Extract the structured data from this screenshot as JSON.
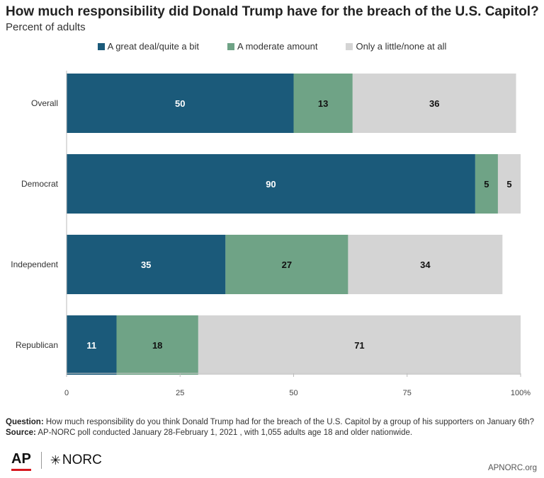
{
  "chart_data": {
    "type": "bar",
    "orientation": "horizontal",
    "stacked": true,
    "title": "How much responsibility did Donald Trump have for the breach of the U.S. Capitol?",
    "subtitle": "Percent of adults",
    "categories": [
      "Overall",
      "Democrat",
      "Independent",
      "Republican"
    ],
    "series": [
      {
        "name": "A great deal/quite a bit",
        "color": "#1b5a7a",
        "values": [
          50,
          90,
          35,
          11
        ]
      },
      {
        "name": "A moderate amount",
        "color": "#6fa386",
        "values": [
          13,
          5,
          27,
          18
        ]
      },
      {
        "name": "Only a little/none at all",
        "color": "#d4d4d4",
        "values": [
          36,
          5,
          34,
          71
        ]
      }
    ],
    "xlim": [
      0,
      100
    ],
    "xticks": [
      "0",
      "25",
      "50",
      "75",
      "100%"
    ],
    "legend_position": "top",
    "grid": false
  },
  "footer": {
    "question_label": "Question:",
    "question_text": "How much responsibility do you think Donald Trump had for the breach of the U.S. Capitol by a group of his supporters on January 6th?",
    "source_label": "Source:",
    "source_text": "AP-NORC poll conducted January 28-February 1, 2021 , with 1,055 adults age 18 and older nationwide."
  },
  "branding": {
    "ap_logo": "AP",
    "norc_logo": "NORC",
    "norc_icon": "asterisk-icon",
    "site": "APNORC.org"
  }
}
